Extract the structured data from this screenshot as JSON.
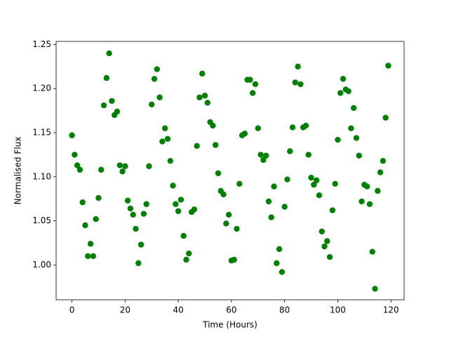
{
  "chart_data": {
    "type": "scatter",
    "xlabel": "Time (Hours)",
    "ylabel": "Normalised Flux",
    "color": "#008000",
    "x": [
      0,
      1,
      2,
      3,
      4,
      5,
      6,
      7,
      8,
      9,
      10,
      11,
      12,
      13,
      14,
      15,
      16,
      17,
      18,
      19,
      20,
      21,
      22,
      23,
      24,
      25,
      26,
      27,
      28,
      29,
      30,
      31,
      32,
      33,
      34,
      35,
      36,
      37,
      38,
      39,
      40,
      41,
      42,
      43,
      44,
      45,
      46,
      47,
      48,
      49,
      50,
      51,
      52,
      53,
      54,
      55,
      56,
      57,
      58,
      59,
      60,
      61,
      62,
      63,
      64,
      65,
      66,
      67,
      68,
      69,
      70,
      71,
      72,
      73,
      74,
      75,
      76,
      77,
      78,
      79,
      80,
      81,
      82,
      83,
      84,
      85,
      86,
      87,
      88,
      89,
      90,
      91,
      92,
      93,
      94,
      95,
      96,
      97,
      98,
      99,
      100,
      101,
      102,
      103,
      104,
      105,
      106,
      107,
      108,
      109,
      110,
      111,
      112,
      113,
      114,
      115,
      116,
      117,
      118,
      119
    ],
    "values": [
      1.147,
      1.125,
      1.113,
      1.108,
      1.071,
      1.045,
      1.01,
      1.024,
      1.01,
      1.052,
      1.076,
      1.108,
      1.181,
      1.212,
      1.24,
      1.186,
      1.17,
      1.174,
      1.113,
      1.106,
      1.112,
      1.073,
      1.064,
      1.057,
      1.041,
      1.002,
      1.023,
      1.058,
      1.069,
      1.112,
      1.182,
      1.211,
      1.222,
      1.19,
      1.14,
      1.155,
      1.143,
      1.118,
      1.09,
      1.069,
      1.061,
      1.074,
      1.033,
      1.006,
      1.013,
      1.06,
      1.063,
      1.135,
      1.19,
      1.217,
      1.192,
      1.184,
      1.162,
      1.158,
      1.136,
      1.104,
      1.084,
      1.08,
      1.047,
      1.057,
      1.005,
      1.006,
      1.041,
      1.092,
      1.147,
      1.149,
      1.21,
      1.21,
      1.195,
      1.205,
      1.155,
      1.125,
      1.119,
      1.124,
      1.072,
      1.054,
      1.089,
      1.002,
      1.018,
      0.992,
      1.066,
      1.097,
      1.129,
      1.156,
      1.207,
      1.225,
      1.205,
      1.156,
      1.158,
      1.125,
      1.099,
      1.091,
      1.096,
      1.079,
      1.038,
      1.021,
      1.027,
      1.009,
      1.062,
      1.092,
      1.142,
      1.195,
      1.211,
      1.199,
      1.197,
      1.155,
      1.178,
      1.144,
      1.124,
      1.072,
      1.091,
      1.089,
      1.069,
      1.015,
      0.973,
      1.084,
      1.105,
      1.118,
      1.167,
      1.226
    ],
    "xlim": [
      -5.95,
      124.95
    ],
    "xticks": [
      0,
      20,
      40,
      60,
      80,
      100,
      120
    ],
    "ylim": [
      0.9605,
      1.2535
    ],
    "yticks": [
      {
        "value": 1,
        "label": "1.00"
      },
      1.05,
      {
        "value": 1.1,
        "label": "1.10"
      },
      1.15,
      {
        "value": 1.2,
        "label": "1.20"
      },
      1.25
    ]
  }
}
